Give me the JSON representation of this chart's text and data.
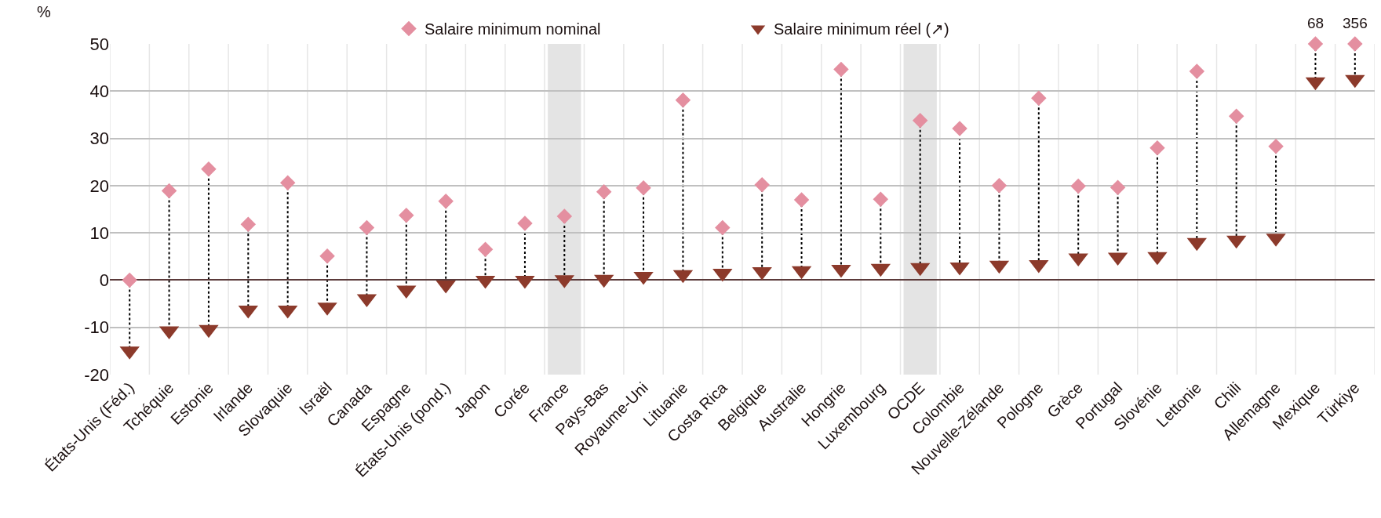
{
  "chart_data": {
    "type": "scatter",
    "ylabel": "%",
    "categories": [
      "États-Unis (Féd.)",
      "Tchéquie",
      "Estonie",
      "Irlande",
      "Slovaquie",
      "Israël",
      "Canada",
      "Espagne",
      "États-Unis (pond.)",
      "Japon",
      "Corée",
      "France",
      "Pays-Bas",
      "Royaume-Uni",
      "Lituanie",
      "Costa Rica",
      "Belgique",
      "Australie",
      "Hongrie",
      "Luxembourg",
      "OCDE",
      "Colombie",
      "Nouvelle-Zélande",
      "Pologne",
      "Grèce",
      "Portugal",
      "Slovénie",
      "Lettonie",
      "Chili",
      "Allemagne",
      "Mexique",
      "Türkiye"
    ],
    "series": [
      {
        "name": "Salaire minimum nominal",
        "color": "#e48fa0",
        "marker": "diamond",
        "values": [
          0,
          18.9,
          23.5,
          11.8,
          20.6,
          5.1,
          11.1,
          13.7,
          16.7,
          6.5,
          12.0,
          13.5,
          18.7,
          19.5,
          38.1,
          11.1,
          20.2,
          17.0,
          44.6,
          17.1,
          33.8,
          32.1,
          20.0,
          38.5,
          19.9,
          19.6,
          28.0,
          44.2,
          34.7,
          28.3,
          50,
          50
        ]
      },
      {
        "name": "Salaire minimum réel (↗)",
        "color": "#8c3a2b",
        "marker": "triangle",
        "values": [
          -15,
          -10.7,
          -10.4,
          -6.3,
          -6.3,
          -5.7,
          -3.9,
          -2.1,
          -1.0,
          0,
          0,
          0.1,
          0.2,
          0.8,
          1.2,
          1.5,
          1.8,
          2.0,
          2.3,
          2.5,
          2.7,
          2.8,
          3.2,
          3.3,
          4.7,
          4.9,
          5.0,
          8.0,
          8.5,
          8.9,
          42.0,
          42.5
        ]
      }
    ],
    "annotations": [
      {
        "text": "68",
        "x": "Mexique",
        "y": 50
      },
      {
        "text": "356",
        "x": "Türkiye",
        "y": 50
      }
    ],
    "bands": [
      {
        "axis": "x",
        "from": "France",
        "to": "France",
        "color": "#e4e4e4"
      },
      {
        "axis": "x",
        "from": "OCDE",
        "to": "OCDE",
        "color": "#e4e4e4"
      }
    ],
    "ylim": [
      -20,
      50
    ],
    "yticks": [
      -20,
      -10,
      0,
      10,
      20,
      30,
      40,
      50
    ],
    "grid": true,
    "legend": "top",
    "line_style": "dotted"
  }
}
